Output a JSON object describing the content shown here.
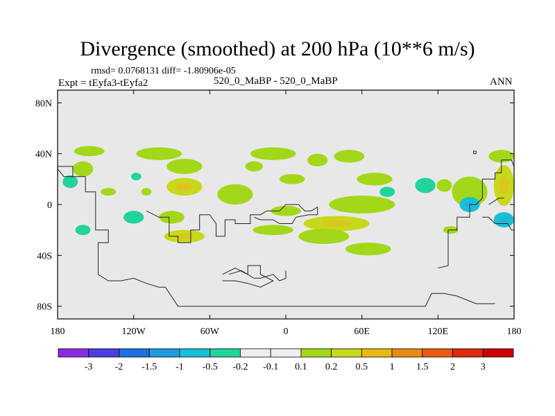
{
  "chart_data": {
    "type": "heatmap",
    "title": "Divergence (smoothed) at 200 hPa (10**6 m/s)",
    "rmsd_label": "rmsd= 0.0768131 diff= -1.80906e-05",
    "case_label": "520_0_MaBP - 520_0_MaBP",
    "expt_label": "Expt = tEyfa3-tEyfa2",
    "season": "ANN",
    "x_range": [
      -180,
      180
    ],
    "y_range": [
      -90,
      90
    ],
    "x_ticks": [
      {
        "value": -180,
        "label": "180"
      },
      {
        "value": -120,
        "label": "120W"
      },
      {
        "value": -60,
        "label": "60W"
      },
      {
        "value": 0,
        "label": "0"
      },
      {
        "value": 60,
        "label": "60E"
      },
      {
        "value": 120,
        "label": "120E"
      },
      {
        "value": 180,
        "label": "180"
      }
    ],
    "y_ticks": [
      {
        "value": 80,
        "label": "80N"
      },
      {
        "value": 40,
        "label": "40N"
      },
      {
        "value": 0,
        "label": "0"
      },
      {
        "value": -40,
        "label": "40S"
      },
      {
        "value": -80,
        "label": "80S"
      }
    ],
    "colorbar": {
      "labels": [
        "-3",
        "-2",
        "-1.5",
        "-1",
        "-0.5",
        "-0.2",
        "-0.1",
        "0.1",
        "0.2",
        "0.5",
        "1",
        "1.5",
        "2",
        "3"
      ],
      "colors": [
        "#8a2be2",
        "#4b3fe0",
        "#1f6fe0",
        "#1e9ae3",
        "#18c0d6",
        "#22d39c",
        "#eeeeee",
        "#eeeeee",
        "#a3d81a",
        "#c8d81a",
        "#e8b817",
        "#e88a14",
        "#e85a12",
        "#dd2a10",
        "#cc0000"
      ]
    },
    "background_color": "#e8e8e8",
    "blobs": [
      {
        "lon": -155,
        "lat": 42,
        "rx": 12,
        "ry": 4,
        "level": 0.2
      },
      {
        "lon": -170,
        "lat": 18,
        "rx": 6,
        "ry": 5,
        "level": -0.2
      },
      {
        "lon": -140,
        "lat": 10,
        "rx": 6,
        "ry": 3,
        "level": 0.2
      },
      {
        "lon": -160,
        "lat": 28,
        "rx": 8,
        "ry": 6,
        "level": 0.2
      },
      {
        "lon": -118,
        "lat": 22,
        "rx": 4,
        "ry": 3,
        "level": -0.2
      },
      {
        "lon": -110,
        "lat": 10,
        "rx": 4,
        "ry": 3,
        "level": 0.2
      },
      {
        "lon": -100,
        "lat": 40,
        "rx": 18,
        "ry": 5,
        "level": 0.2
      },
      {
        "lon": -80,
        "lat": 30,
        "rx": 14,
        "ry": 6,
        "level": 0.2
      },
      {
        "lon": -80,
        "lat": 14,
        "rx": 14,
        "ry": 7,
        "level": 0.5
      },
      {
        "lon": -40,
        "lat": 8,
        "rx": 14,
        "ry": 8,
        "level": 0.2
      },
      {
        "lon": -25,
        "lat": 30,
        "rx": 7,
        "ry": 4,
        "level": 0.2
      },
      {
        "lon": -10,
        "lat": 40,
        "rx": 18,
        "ry": 5,
        "level": 0.2
      },
      {
        "lon": 5,
        "lat": 20,
        "rx": 10,
        "ry": 4,
        "level": 0.2
      },
      {
        "lon": 0,
        "lat": -5,
        "rx": 12,
        "ry": 4,
        "level": 0.2
      },
      {
        "lon": 25,
        "lat": 35,
        "rx": 8,
        "ry": 5,
        "level": 0.2
      },
      {
        "lon": 50,
        "lat": 38,
        "rx": 12,
        "ry": 5,
        "level": 0.2
      },
      {
        "lon": 70,
        "lat": 20,
        "rx": 14,
        "ry": 5,
        "level": 0.2
      },
      {
        "lon": 60,
        "lat": 0,
        "rx": 26,
        "ry": 7,
        "level": 0.2
      },
      {
        "lon": 40,
        "lat": -15,
        "rx": 26,
        "ry": 6,
        "level": 0.5
      },
      {
        "lon": 30,
        "lat": -25,
        "rx": 20,
        "ry": 6,
        "level": 0.2
      },
      {
        "lon": 65,
        "lat": -35,
        "rx": 18,
        "ry": 5,
        "level": 0.2
      },
      {
        "lon": -90,
        "lat": -10,
        "rx": 10,
        "ry": 5,
        "level": 0.2
      },
      {
        "lon": -80,
        "lat": -25,
        "rx": 16,
        "ry": 5,
        "level": 0.5
      },
      {
        "lon": -10,
        "lat": -20,
        "rx": 16,
        "ry": 4,
        "level": 0.2
      },
      {
        "lon": -120,
        "lat": -10,
        "rx": 8,
        "ry": 5,
        "level": -0.2
      },
      {
        "lon": -160,
        "lat": -20,
        "rx": 6,
        "ry": 4,
        "level": -0.2
      },
      {
        "lon": 80,
        "lat": 10,
        "rx": 6,
        "ry": 4,
        "level": -0.2
      },
      {
        "lon": 110,
        "lat": 15,
        "rx": 8,
        "ry": 6,
        "level": -0.2
      },
      {
        "lon": 145,
        "lat": 10,
        "rx": 14,
        "ry": 12,
        "level": 0.2
      },
      {
        "lon": 145,
        "lat": 0,
        "rx": 8,
        "ry": 6,
        "level": -0.5
      },
      {
        "lon": 172,
        "lat": 15,
        "rx": 8,
        "ry": 16,
        "level": 0.5
      },
      {
        "lon": 172,
        "lat": -12,
        "rx": 8,
        "ry": 6,
        "level": -0.5
      },
      {
        "lon": 170,
        "lat": 38,
        "rx": 10,
        "ry": 5,
        "level": 0.2
      },
      {
        "lon": 125,
        "lat": 15,
        "rx": 6,
        "ry": 5,
        "level": 0.2
      },
      {
        "lon": 130,
        "lat": -20,
        "rx": 6,
        "ry": 3,
        "level": 0.2
      }
    ],
    "coastlines": [
      [
        [
          -180,
          30
        ],
        [
          -168,
          30
        ],
        [
          -168,
          22
        ],
        [
          -158,
          22
        ],
        [
          -158,
          10
        ],
        [
          -150,
          10
        ],
        [
          -150,
          -20
        ],
        [
          -140,
          -20
        ],
        [
          -140,
          -30
        ],
        [
          -148,
          -30
        ],
        [
          -148,
          -55
        ],
        [
          -140,
          -60
        ],
        [
          -130,
          -60
        ],
        [
          -120,
          -58
        ],
        [
          -110,
          -62
        ],
        [
          -100,
          -65
        ],
        [
          -95,
          -65
        ],
        [
          -85,
          -80
        ],
        [
          -60,
          -80
        ],
        [
          -20,
          -80
        ],
        [
          0,
          -80
        ],
        [
          60,
          -80
        ],
        [
          110,
          -80
        ],
        [
          115,
          -70
        ],
        [
          125,
          -70
        ],
        [
          135,
          -72
        ],
        [
          150,
          -78
        ],
        [
          165,
          -78
        ]
      ],
      [
        [
          -180,
          28
        ],
        [
          -175,
          22
        ],
        [
          -168,
          22
        ]
      ],
      [
        [
          -110,
          -5
        ],
        [
          -100,
          -10
        ],
        [
          -92,
          -10
        ],
        [
          -92,
          -25
        ],
        [
          -85,
          -25
        ],
        [
          -85,
          -30
        ],
        [
          -75,
          -30
        ],
        [
          -75,
          -20
        ],
        [
          -68,
          -20
        ],
        [
          -68,
          -8
        ],
        [
          -60,
          -8
        ],
        [
          -55,
          -15
        ],
        [
          -55,
          -25
        ],
        [
          -48,
          -25
        ],
        [
          -48,
          -12
        ],
        [
          -40,
          -12
        ],
        [
          -40,
          -15
        ],
        [
          -28,
          -15
        ],
        [
          -28,
          -8
        ],
        [
          -20,
          -8
        ],
        [
          -15,
          -5
        ],
        [
          -5,
          -5
        ],
        [
          0,
          0
        ],
        [
          10,
          0
        ],
        [
          15,
          -5
        ],
        [
          20,
          -5
        ],
        [
          25,
          -2
        ],
        [
          25,
          -8
        ],
        [
          18,
          -8
        ],
        [
          8,
          -10
        ],
        [
          5,
          -15
        ],
        [
          -5,
          -15
        ],
        [
          -10,
          -12
        ],
        [
          -20,
          -12
        ],
        [
          -25,
          -10
        ]
      ],
      [
        [
          -50,
          -55
        ],
        [
          -40,
          -50
        ],
        [
          -30,
          -55
        ],
        [
          -30,
          -48
        ],
        [
          -20,
          -48
        ],
        [
          -20,
          -55
        ],
        [
          -10,
          -60
        ],
        [
          -20,
          -65
        ],
        [
          -30,
          -62
        ],
        [
          -40,
          -60
        ],
        [
          -50,
          -60
        ]
      ],
      [
        [
          -45,
          -55
        ],
        [
          -35,
          -52
        ],
        [
          -25,
          -58
        ],
        [
          -20,
          -58
        ],
        [
          -10,
          -55
        ],
        [
          -5,
          -60
        ],
        [
          0,
          -58
        ],
        [
          0,
          -52
        ]
      ],
      [
        [
          120,
          -50
        ],
        [
          128,
          -48
        ],
        [
          128,
          -20
        ],
        [
          135,
          -20
        ],
        [
          135,
          -10
        ],
        [
          145,
          -10
        ],
        [
          145,
          0
        ],
        [
          150,
          0
        ],
        [
          155,
          5
        ],
        [
          155,
          20
        ],
        [
          165,
          20
        ],
        [
          165,
          25
        ],
        [
          170,
          25
        ],
        [
          170,
          35
        ],
        [
          178,
          35
        ],
        [
          180,
          30
        ]
      ],
      [
        [
          155,
          -10
        ],
        [
          160,
          -10
        ],
        [
          165,
          -15
        ],
        [
          175,
          -15
        ],
        [
          178,
          -20
        ],
        [
          180,
          -20
        ]
      ],
      [
        [
          148,
          40
        ],
        [
          150,
          40
        ],
        [
          150,
          42
        ],
        [
          148,
          42
        ],
        [
          148,
          40
        ]
      ],
      [
        [
          160,
          0
        ],
        [
          168,
          5
        ],
        [
          172,
          5
        ]
      ]
    ]
  }
}
